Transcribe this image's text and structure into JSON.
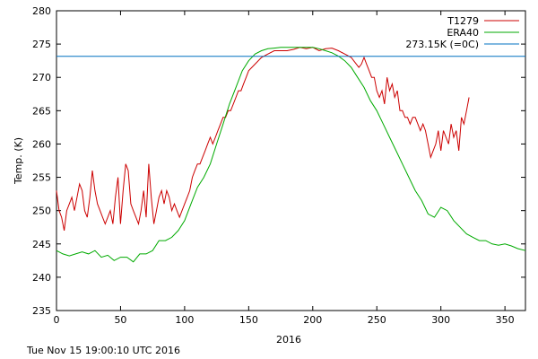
{
  "chart_data": {
    "type": "line",
    "title": "",
    "xlabel": "2016",
    "ylabel": "Temp. (K)",
    "xlim": [
      0,
      366
    ],
    "ylim": [
      235,
      280
    ],
    "xticks": [
      0,
      50,
      100,
      150,
      200,
      250,
      300,
      350
    ],
    "yticks": [
      235,
      240,
      245,
      250,
      255,
      260,
      265,
      270,
      275,
      280
    ],
    "grid": false,
    "legend_position": "top-right",
    "series": [
      {
        "name": "T1279",
        "color": "#cc0000",
        "x": [
          0,
          2,
          4,
          6,
          8,
          10,
          12,
          14,
          16,
          18,
          20,
          22,
          24,
          26,
          28,
          30,
          32,
          34,
          36,
          38,
          40,
          42,
          44,
          46,
          48,
          50,
          52,
          54,
          56,
          58,
          60,
          62,
          64,
          66,
          68,
          70,
          72,
          74,
          76,
          78,
          80,
          82,
          84,
          86,
          88,
          90,
          92,
          94,
          96,
          98,
          100,
          102,
          104,
          106,
          108,
          110,
          112,
          114,
          116,
          118,
          120,
          122,
          124,
          126,
          128,
          130,
          132,
          134,
          136,
          138,
          140,
          142,
          144,
          146,
          148,
          150,
          155,
          160,
          165,
          170,
          175,
          180,
          185,
          190,
          195,
          200,
          205,
          210,
          215,
          220,
          225,
          230,
          232,
          234,
          236,
          238,
          240,
          242,
          244,
          246,
          248,
          250,
          252,
          254,
          256,
          258,
          260,
          262,
          264,
          266,
          268,
          270,
          272,
          274,
          276,
          278,
          280,
          282,
          284,
          286,
          288,
          290,
          292,
          294,
          296,
          298,
          300,
          302,
          304,
          306,
          308,
          310,
          312,
          314,
          316,
          318,
          320,
          322
        ],
        "y": [
          253,
          250,
          249,
          247,
          250,
          251,
          252,
          250,
          252,
          254,
          253,
          250,
          249,
          252,
          256,
          253,
          251,
          250,
          249,
          248,
          249,
          250,
          248,
          252,
          255,
          248,
          253,
          257,
          256,
          251,
          250,
          249,
          248,
          250,
          253,
          249,
          257,
          252,
          248,
          250,
          252,
          253,
          251,
          253,
          252,
          250,
          251,
          250,
          249,
          250,
          251,
          252,
          253,
          255,
          256,
          257,
          257,
          258,
          259,
          260,
          261,
          260,
          261,
          262,
          263,
          264,
          264,
          265,
          265,
          266,
          267,
          268,
          268,
          269,
          270,
          271,
          272,
          273,
          273.5,
          274,
          274,
          274,
          274.2,
          274.5,
          274.3,
          274.5,
          274,
          274.3,
          274.4,
          274,
          273.5,
          273,
          272.5,
          272,
          271.5,
          272,
          273,
          272,
          271,
          270,
          270,
          268,
          267,
          268,
          266,
          270,
          268,
          269,
          267,
          268,
          265,
          265,
          264,
          264,
          263,
          264,
          264,
          263,
          262,
          263,
          262,
          260,
          258,
          259,
          260,
          262,
          259,
          262,
          261,
          260,
          263,
          261,
          262,
          259,
          264,
          263,
          265,
          267
        ]
      },
      {
        "name": "ERA40",
        "color": "#00aa00",
        "x": [
          0,
          5,
          10,
          15,
          20,
          25,
          30,
          35,
          40,
          45,
          50,
          55,
          60,
          65,
          70,
          75,
          80,
          85,
          90,
          95,
          100,
          105,
          110,
          115,
          120,
          125,
          130,
          135,
          140,
          145,
          150,
          155,
          160,
          165,
          170,
          175,
          180,
          185,
          190,
          195,
          200,
          205,
          210,
          215,
          220,
          225,
          230,
          235,
          240,
          245,
          250,
          255,
          260,
          265,
          270,
          275,
          280,
          285,
          290,
          295,
          300,
          305,
          310,
          315,
          320,
          325,
          330,
          335,
          340,
          345,
          350,
          355,
          360,
          366
        ],
        "y": [
          244,
          243.5,
          243.2,
          243.5,
          243.8,
          243.5,
          244,
          243,
          243.3,
          242.5,
          243,
          243,
          242.3,
          243.5,
          243.5,
          244,
          245.5,
          245.5,
          246,
          247,
          248.5,
          251,
          253.5,
          255,
          257,
          260,
          263,
          266,
          268.5,
          271,
          272.5,
          273.5,
          274,
          274.3,
          274.4,
          274.5,
          274.5,
          274.5,
          274.5,
          274.5,
          274.5,
          274.3,
          274,
          273.7,
          273.2,
          272.5,
          271.5,
          270,
          268.5,
          266.5,
          265,
          263,
          261,
          259,
          257,
          255,
          253,
          251.5,
          249.5,
          249,
          250.5,
          250,
          248.5,
          247.5,
          246.5,
          246,
          245.5,
          245.5,
          245,
          244.8,
          245,
          244.7,
          244.3,
          244
        ]
      },
      {
        "name": "273.15K (=0C)",
        "color": "#0070c0",
        "x": [
          0,
          366
        ],
        "y": [
          273.15,
          273.15
        ]
      }
    ]
  },
  "footer": {
    "timestamp": "Tue Nov 15 19:00:10 UTC 2016"
  }
}
